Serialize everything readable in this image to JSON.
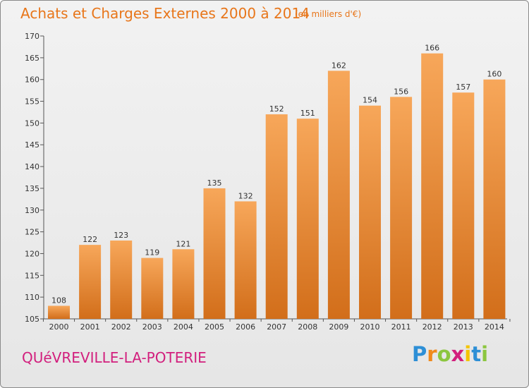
{
  "header": {
    "title": "Achats et Charges Externes 2000 à 2014",
    "unit": "(en milliers d'€)"
  },
  "footer": {
    "commune": "QUéVREVILLE-LA-POTERIE",
    "logo": "Proxiti"
  },
  "colors": {
    "bar_light": "#f7a75a",
    "bar_dark": "#d26e1a",
    "title": "#e8761a",
    "commune": "#d21f7d"
  },
  "chart_data": {
    "type": "bar",
    "title": "Achats et Charges Externes 2000 à 2014",
    "subtitle": "(en milliers d'€)",
    "xlabel": "",
    "ylabel": "",
    "categories": [
      "2000",
      "2001",
      "2002",
      "2003",
      "2004",
      "2005",
      "2006",
      "2007",
      "2008",
      "2009",
      "2010",
      "2011",
      "2012",
      "2013",
      "2014"
    ],
    "values": [
      108,
      122,
      123,
      119,
      121,
      135,
      132,
      152,
      151,
      162,
      154,
      156,
      166,
      157,
      160
    ],
    "ylim": [
      105,
      170
    ],
    "yticks": [
      105,
      110,
      115,
      120,
      125,
      130,
      135,
      140,
      145,
      150,
      155,
      160,
      165,
      170
    ],
    "grid": false,
    "data_labels": true
  }
}
